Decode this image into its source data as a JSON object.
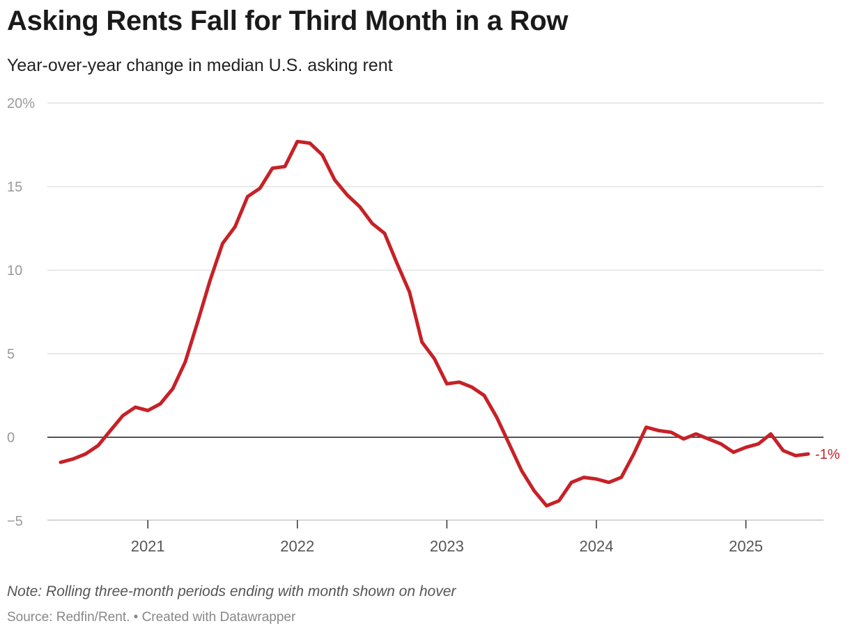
{
  "title": "Asking Rents Fall for Third Month in a Row",
  "subtitle": "Year-over-year change in median U.S. asking rent",
  "note": "Note: Rolling three-month periods ending with month shown on hover",
  "source": "Source: Redfin/Rent. • Created with Datawrapper",
  "colors": {
    "line": "#c62127",
    "grid": "#e2e2e2",
    "zero_line": "#1a1a1a"
  },
  "chart_data": {
    "type": "line",
    "title": "Asking Rents Fall for Third Month in a Row",
    "subtitle": "Year-over-year change in median U.S. asking rent",
    "xlabel": "",
    "ylabel": "",
    "ylim": [
      -5,
      20
    ],
    "yticks": [
      -5,
      0,
      5,
      10,
      15,
      20
    ],
    "ytick_labels": [
      "−5",
      "0",
      "5",
      "10",
      "15",
      "20%"
    ],
    "xlim": [
      "2020-06",
      "2025-06"
    ],
    "xticks": [
      "2021-01",
      "2022-01",
      "2023-01",
      "2024-01",
      "2025-01"
    ],
    "xtick_labels": [
      "2021",
      "2022",
      "2023",
      "2024",
      "2025"
    ],
    "grid": true,
    "end_label": "-1%",
    "series": [
      {
        "x": [
          "2020-06",
          "2020-07",
          "2020-08",
          "2020-09",
          "2020-10",
          "2020-11",
          "2020-12",
          "2021-01",
          "2021-02",
          "2021-03",
          "2021-04",
          "2021-05",
          "2021-06",
          "2021-07",
          "2021-08",
          "2021-09",
          "2021-10",
          "2021-11",
          "2021-12",
          "2022-01",
          "2022-02",
          "2022-03",
          "2022-04",
          "2022-05",
          "2022-06",
          "2022-07",
          "2022-08",
          "2022-09",
          "2022-10",
          "2022-11",
          "2022-12",
          "2023-01",
          "2023-02",
          "2023-03",
          "2023-04",
          "2023-05",
          "2023-06",
          "2023-07",
          "2023-08",
          "2023-09",
          "2023-10",
          "2023-11",
          "2023-12",
          "2024-01",
          "2024-02",
          "2024-03",
          "2024-04",
          "2024-05",
          "2024-06",
          "2024-07",
          "2024-08",
          "2024-09",
          "2024-10",
          "2024-11",
          "2024-12",
          "2025-01",
          "2025-02",
          "2025-03",
          "2025-04",
          "2025-05",
          "2025-06"
        ],
        "values": [
          -1.5,
          -1.3,
          -1.0,
          -0.5,
          0.4,
          1.3,
          1.8,
          1.6,
          2.0,
          2.9,
          4.5,
          6.9,
          9.4,
          11.6,
          12.6,
          14.4,
          14.9,
          16.1,
          16.2,
          17.7,
          17.6,
          16.9,
          15.4,
          14.5,
          13.8,
          12.8,
          12.2,
          10.4,
          8.7,
          5.7,
          4.7,
          3.2,
          3.3,
          3.0,
          2.5,
          1.2,
          -0.4,
          -2.0,
          -3.2,
          -4.1,
          -3.8,
          -2.7,
          -2.4,
          -2.5,
          -2.7,
          -2.4,
          -1.0,
          0.6,
          0.4,
          0.3,
          -0.1,
          0.2,
          -0.1,
          -0.4,
          -0.9,
          -0.6,
          -0.4,
          0.2,
          -0.8,
          -1.1,
          -1.0
        ]
      }
    ]
  }
}
